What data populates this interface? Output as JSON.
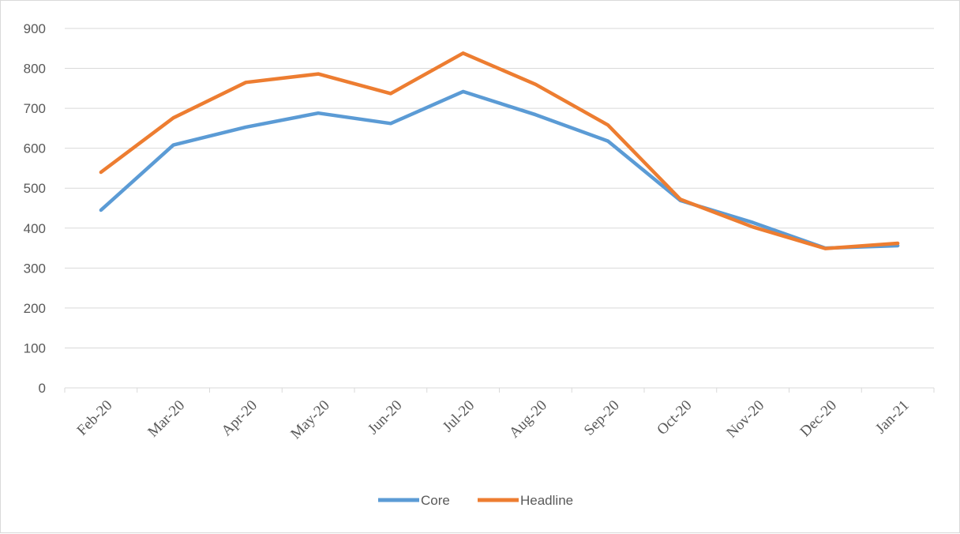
{
  "chart_data": {
    "type": "line",
    "title": "",
    "xlabel": "",
    "ylabel": "",
    "categories": [
      "Feb-20",
      "Mar-20",
      "Apr-20",
      "May-20",
      "Jun-20",
      "Jul-20",
      "Aug-20",
      "Sep-20",
      "Oct-20",
      "Nov-20",
      "Dec-20",
      "Jan-21"
    ],
    "y_ticks": [
      "0",
      "100",
      "200",
      "300",
      "400",
      "500",
      "600",
      "700",
      "800",
      "900"
    ],
    "ylim": [
      0,
      900
    ],
    "grid": "horizontal",
    "legend_position": "bottom",
    "series": [
      {
        "name": "Core",
        "color": "#5b9bd5",
        "values": [
          445,
          608,
          653,
          688,
          662,
          742,
          684,
          618,
          469,
          414,
          350,
          356
        ]
      },
      {
        "name": "Headline",
        "color": "#ed7d31",
        "values": [
          540,
          676,
          765,
          786,
          737,
          838,
          760,
          658,
          472,
          403,
          349,
          362
        ]
      }
    ]
  }
}
